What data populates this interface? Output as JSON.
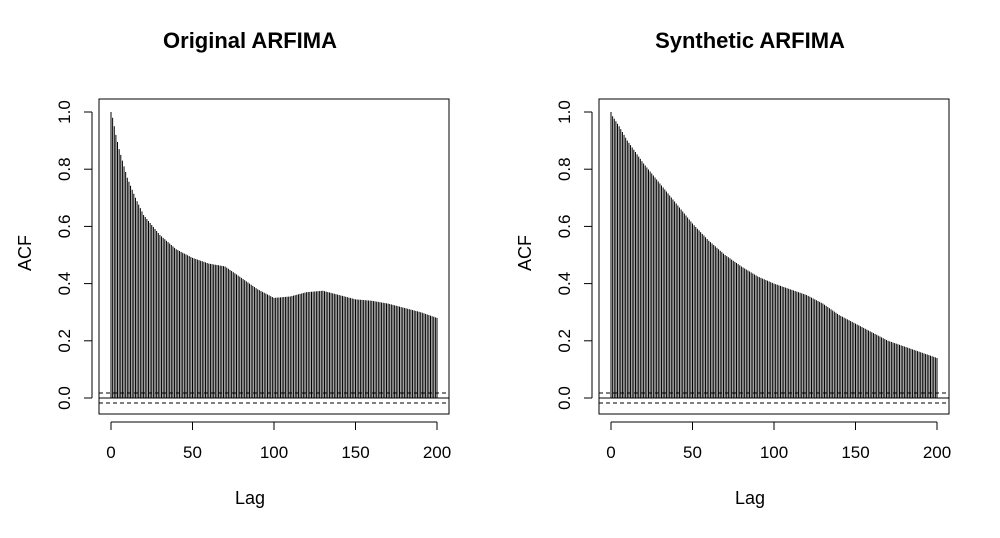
{
  "chart_data": [
    {
      "type": "bar",
      "title": "Original ARFIMA",
      "xlabel": "Lag",
      "ylabel": "ACF",
      "xlim": [
        0,
        200
      ],
      "ylim": [
        -0.05,
        1.03
      ],
      "xticks": [
        "0",
        "50",
        "100",
        "150",
        "200"
      ],
      "yticks": [
        "0.0",
        "0.2",
        "0.4",
        "0.6",
        "0.8",
        "1.0"
      ],
      "confidence_bounds": [
        0.0175,
        -0.0175
      ],
      "knots_lag": [
        0,
        1,
        3,
        5,
        10,
        15,
        20,
        30,
        40,
        50,
        60,
        70,
        80,
        90,
        100,
        110,
        120,
        130,
        140,
        150,
        160,
        170,
        180,
        190,
        200
      ],
      "knots_acf": [
        1.0,
        0.98,
        0.92,
        0.87,
        0.77,
        0.7,
        0.64,
        0.57,
        0.52,
        0.49,
        0.47,
        0.46,
        0.42,
        0.38,
        0.35,
        0.355,
        0.37,
        0.375,
        0.36,
        0.345,
        0.34,
        0.33,
        0.315,
        0.3,
        0.28
      ]
    },
    {
      "type": "bar",
      "title": "Synthetic ARFIMA",
      "xlabel": "Lag",
      "ylabel": "ACF",
      "xlim": [
        0,
        200
      ],
      "ylim": [
        -0.05,
        1.03
      ],
      "xticks": [
        "0",
        "50",
        "100",
        "150",
        "200"
      ],
      "yticks": [
        "0.0",
        "0.2",
        "0.4",
        "0.6",
        "0.8",
        "1.0"
      ],
      "confidence_bounds": [
        0.0175,
        -0.0175
      ],
      "knots_lag": [
        0,
        1,
        5,
        10,
        20,
        30,
        40,
        50,
        60,
        70,
        80,
        90,
        100,
        110,
        120,
        130,
        140,
        150,
        160,
        170,
        180,
        190,
        200
      ],
      "knots_acf": [
        1.0,
        0.985,
        0.95,
        0.9,
        0.82,
        0.75,
        0.68,
        0.61,
        0.55,
        0.5,
        0.46,
        0.425,
        0.4,
        0.38,
        0.36,
        0.33,
        0.29,
        0.26,
        0.23,
        0.2,
        0.18,
        0.16,
        0.14
      ]
    }
  ]
}
